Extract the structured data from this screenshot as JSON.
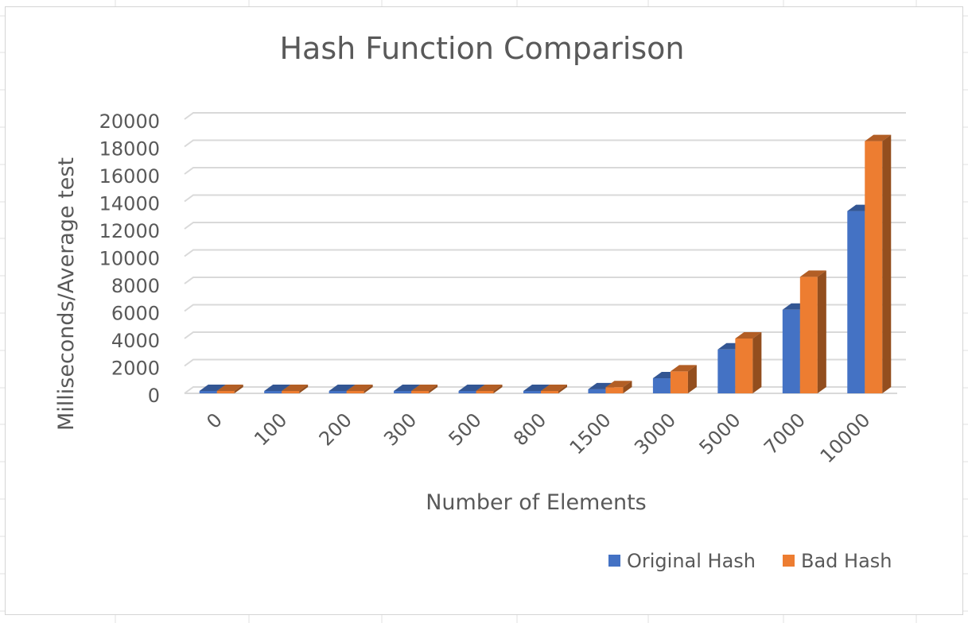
{
  "chart_data": {
    "type": "bar",
    "title": "Hash Function Comparison",
    "xlabel": "Number of Elements",
    "ylabel": "Milliseconds/Average test",
    "categories": [
      "0",
      "100",
      "200",
      "300",
      "500",
      "800",
      "1500",
      "3000",
      "5000",
      "7000",
      "10000"
    ],
    "series": [
      {
        "name": "Original Hash",
        "color": "#4472C4",
        "values": [
          0,
          2,
          5,
          10,
          25,
          65,
          300,
          1100,
          3200,
          6100,
          13300
        ]
      },
      {
        "name": "Bad Hash",
        "color": "#ED7D31",
        "values": [
          0,
          4,
          10,
          25,
          60,
          150,
          450,
          1600,
          4000,
          8500,
          18400
        ]
      }
    ],
    "ylim": [
      0,
      20000
    ],
    "yticks": [
      "0",
      "2000",
      "4000",
      "6000",
      "8000",
      "10000",
      "12000",
      "14000",
      "16000",
      "18000",
      "20000"
    ],
    "grid": true,
    "legend_position": "bottom-right",
    "style": "3d-clustered-column"
  }
}
